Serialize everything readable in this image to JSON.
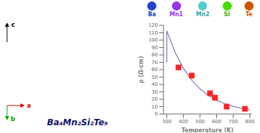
{
  "chart_data": {
    "type": "scatter",
    "xlabel": "Temperature (K)",
    "ylabel": "ρ (Ω·cm)",
    "xlim": [
      280,
      810
    ],
    "ylim": [
      0,
      120
    ],
    "xticks": [
      300,
      400,
      500,
      600,
      700,
      800
    ],
    "yticks": [
      0,
      10,
      20,
      30,
      40,
      50,
      60,
      70,
      80,
      90,
      100,
      110,
      120
    ],
    "series": [
      {
        "type": "line",
        "color": "#7777bb",
        "line_style": "solid",
        "x": [
          300,
          300,
          350,
          400,
          450,
          500,
          550,
          600,
          650,
          700,
          750,
          800
        ],
        "values": [
          70,
          112.37,
          83.34,
          61.81,
          45.84,
          33.99,
          25.21,
          18.7,
          13.87,
          10.29,
          7.63,
          5.66
        ]
      },
      {
        "type": "scatter",
        "color": "#ff2222",
        "marker": "square",
        "x": [
          370,
          450,
          560,
          590,
          660,
          770
        ],
        "values": [
          63,
          52,
          28,
          22,
          10,
          7
        ]
      }
    ],
    "annotations": [
      {
        "text": "c",
        "color": "#000000"
      },
      {
        "text": "a",
        "color": "#cc0000"
      },
      {
        "text": "b",
        "color": "#00aa00"
      },
      {
        "text": "Ba₄Mn₂Si₂Te₉",
        "color": "#111166"
      },
      {
        "text": "Ba",
        "color": "#2244cc",
        "marker_color": "#2244cc"
      },
      {
        "text": "Mn1",
        "color": "#9933ee",
        "marker_color": "#9933ee"
      },
      {
        "text": "Mn2",
        "color": "#33aaaa",
        "marker_color": "#55cccc"
      },
      {
        "text": "Si",
        "color": "#44aa00",
        "marker_color": "#44dd00"
      },
      {
        "text": "Te",
        "color": "#cc5500",
        "marker_color": "#cc5500"
      }
    ],
    "grid": false
  }
}
